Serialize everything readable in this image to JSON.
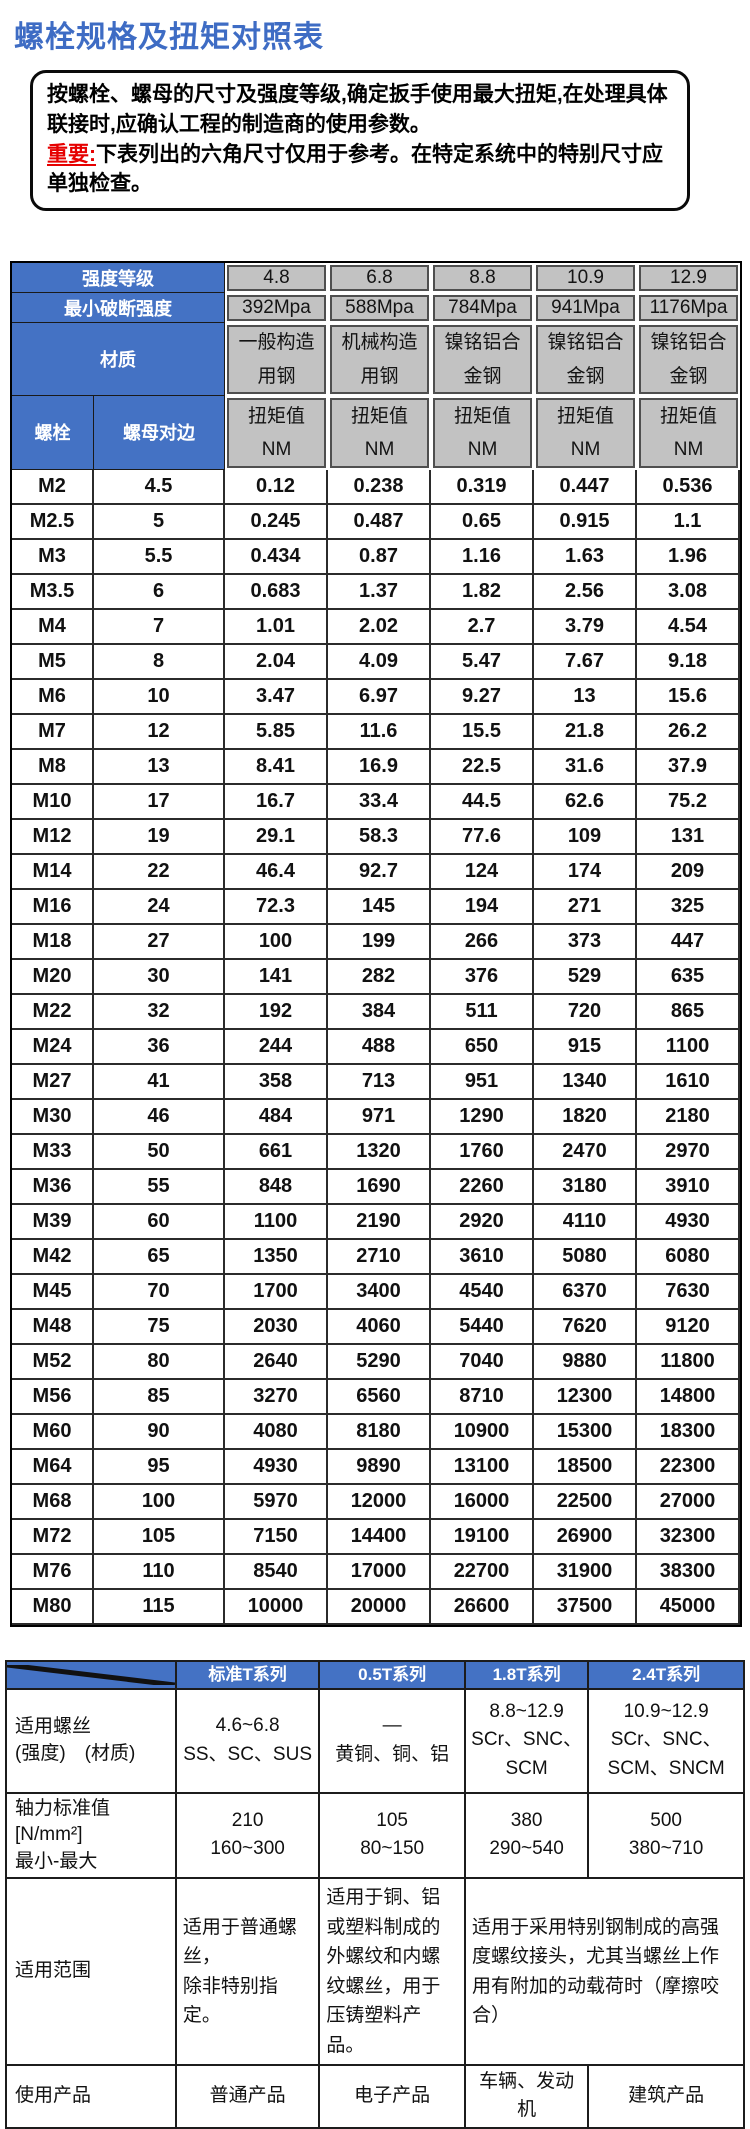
{
  "page": {
    "title": "螺栓规格及扭矩对照表"
  },
  "notice": {
    "line1": "按螺栓、螺母的尺寸及强度等级,确定扳手使用最大扭矩,在处理具体联接时,应确认工程的制造商的使用参数。",
    "important_label": "重要:",
    "line2": "下表列出的六角尺寸仅用于参考。在特定系统中的特别尺寸应单独检查。"
  },
  "colors": {
    "accent_blue": "#4472c4",
    "header_gray": "#c2c2c2",
    "title_blue": "#3e6cc4",
    "important_red": "#e60000"
  },
  "main_table": {
    "header": {
      "strength_grade_label": "强度等级",
      "strength_grades": [
        "4.8",
        "6.8",
        "8.8",
        "10.9",
        "12.9"
      ],
      "min_break_label": "最小破断强度",
      "min_break_values": [
        "392Mpa",
        "588Mpa",
        "784Mpa",
        "941Mpa",
        "1176Mpa"
      ],
      "material_label": "材质",
      "materials": [
        "一般构造\n用钢",
        "机械构造\n用钢",
        "镍铭铝合\n金钢",
        "镍铭铝合\n金钢",
        "镍铭铝合\n金钢"
      ],
      "bolt_label": "螺栓",
      "nut_label": "螺母对边",
      "torque_label": "扭矩值\nNM"
    },
    "rows": [
      [
        "M2",
        "4.5",
        "0.12",
        "0.238",
        "0.319",
        "0.447",
        "0.536"
      ],
      [
        "M2.5",
        "5",
        "0.245",
        "0.487",
        "0.65",
        "0.915",
        "1.1"
      ],
      [
        "M3",
        "5.5",
        "0.434",
        "0.87",
        "1.16",
        "1.63",
        "1.96"
      ],
      [
        "M3.5",
        "6",
        "0.683",
        "1.37",
        "1.82",
        "2.56",
        "3.08"
      ],
      [
        "M4",
        "7",
        "1.01",
        "2.02",
        "2.7",
        "3.79",
        "4.54"
      ],
      [
        "M5",
        "8",
        "2.04",
        "4.09",
        "5.47",
        "7.67",
        "9.18"
      ],
      [
        "M6",
        "10",
        "3.47",
        "6.97",
        "9.27",
        "13",
        "15.6"
      ],
      [
        "M7",
        "12",
        "5.85",
        "11.6",
        "15.5",
        "21.8",
        "26.2"
      ],
      [
        "M8",
        "13",
        "8.41",
        "16.9",
        "22.5",
        "31.6",
        "37.9"
      ],
      [
        "M10",
        "17",
        "16.7",
        "33.4",
        "44.5",
        "62.6",
        "75.2"
      ],
      [
        "M12",
        "19",
        "29.1",
        "58.3",
        "77.6",
        "109",
        "131"
      ],
      [
        "M14",
        "22",
        "46.4",
        "92.7",
        "124",
        "174",
        "209"
      ],
      [
        "M16",
        "24",
        "72.3",
        "145",
        "194",
        "271",
        "325"
      ],
      [
        "M18",
        "27",
        "100",
        "199",
        "266",
        "373",
        "447"
      ],
      [
        "M20",
        "30",
        "141",
        "282",
        "376",
        "529",
        "635"
      ],
      [
        "M22",
        "32",
        "192",
        "384",
        "511",
        "720",
        "865"
      ],
      [
        "M24",
        "36",
        "244",
        "488",
        "650",
        "915",
        "1100"
      ],
      [
        "M27",
        "41",
        "358",
        "713",
        "951",
        "1340",
        "1610"
      ],
      [
        "M30",
        "46",
        "484",
        "971",
        "1290",
        "1820",
        "2180"
      ],
      [
        "M33",
        "50",
        "661",
        "1320",
        "1760",
        "2470",
        "2970"
      ],
      [
        "M36",
        "55",
        "848",
        "1690",
        "2260",
        "3180",
        "3910"
      ],
      [
        "M39",
        "60",
        "1100",
        "2190",
        "2920",
        "4110",
        "4930"
      ],
      [
        "M42",
        "65",
        "1350",
        "2710",
        "3610",
        "5080",
        "6080"
      ],
      [
        "M45",
        "70",
        "1700",
        "3400",
        "4540",
        "6370",
        "7630"
      ],
      [
        "M48",
        "75",
        "2030",
        "4060",
        "5440",
        "7620",
        "9120"
      ],
      [
        "M52",
        "80",
        "2640",
        "5290",
        "7040",
        "9880",
        "11800"
      ],
      [
        "M56",
        "85",
        "3270",
        "6560",
        "8710",
        "12300",
        "14800"
      ],
      [
        "M60",
        "90",
        "4080",
        "8180",
        "10900",
        "15300",
        "18300"
      ],
      [
        "M64",
        "95",
        "4930",
        "9890",
        "13100",
        "18500",
        "22300"
      ],
      [
        "M68",
        "100",
        "5970",
        "12000",
        "16000",
        "22500",
        "27000"
      ],
      [
        "M72",
        "105",
        "7150",
        "14400",
        "19100",
        "26900",
        "32300"
      ],
      [
        "M76",
        "110",
        "8540",
        "17000",
        "22700",
        "31900",
        "38300"
      ],
      [
        "M80",
        "115",
        "10000",
        "20000",
        "26600",
        "37500",
        "45000"
      ]
    ]
  },
  "series_table": {
    "columns": [
      "标准T系列",
      "0.5T系列",
      "1.8T系列",
      "2.4T系列"
    ],
    "screws": {
      "label": "适用螺丝\n(强度)　(材质)",
      "standard": "4.6~6.8\nSS、SC、SUS",
      "t05": "—\n黄铜、铜、铝",
      "t18": "8.8~12.9\nSCr、SNC、\nSCM",
      "t24": "10.9~12.9\nSCr、SNC、\nSCM、SNCM"
    },
    "axial_force": {
      "label": "轴力标准值\n[N/mm²]\n最小-最大",
      "standard": "210\n160~300",
      "t05": "105\n80~150",
      "t18": "380\n290~540",
      "t24": "500\n380~710"
    },
    "scope": {
      "label": "适用范围",
      "standard": "适用于普通螺丝，\n除非特别指定。",
      "t05": "适用于铜、铝或塑料制成的外螺纹和内螺纹螺丝，用于压铸塑料产品。",
      "t18_t24": "适用于采用特别钢制成的高强度螺纹接头，尤其当螺丝上作用有附加的动载荷时（摩擦咬合）"
    },
    "products": {
      "label": "使用产品",
      "standard": "普通产品",
      "t05": "电子产品",
      "t18": "车辆、发动机",
      "t24": "建筑产品"
    }
  }
}
